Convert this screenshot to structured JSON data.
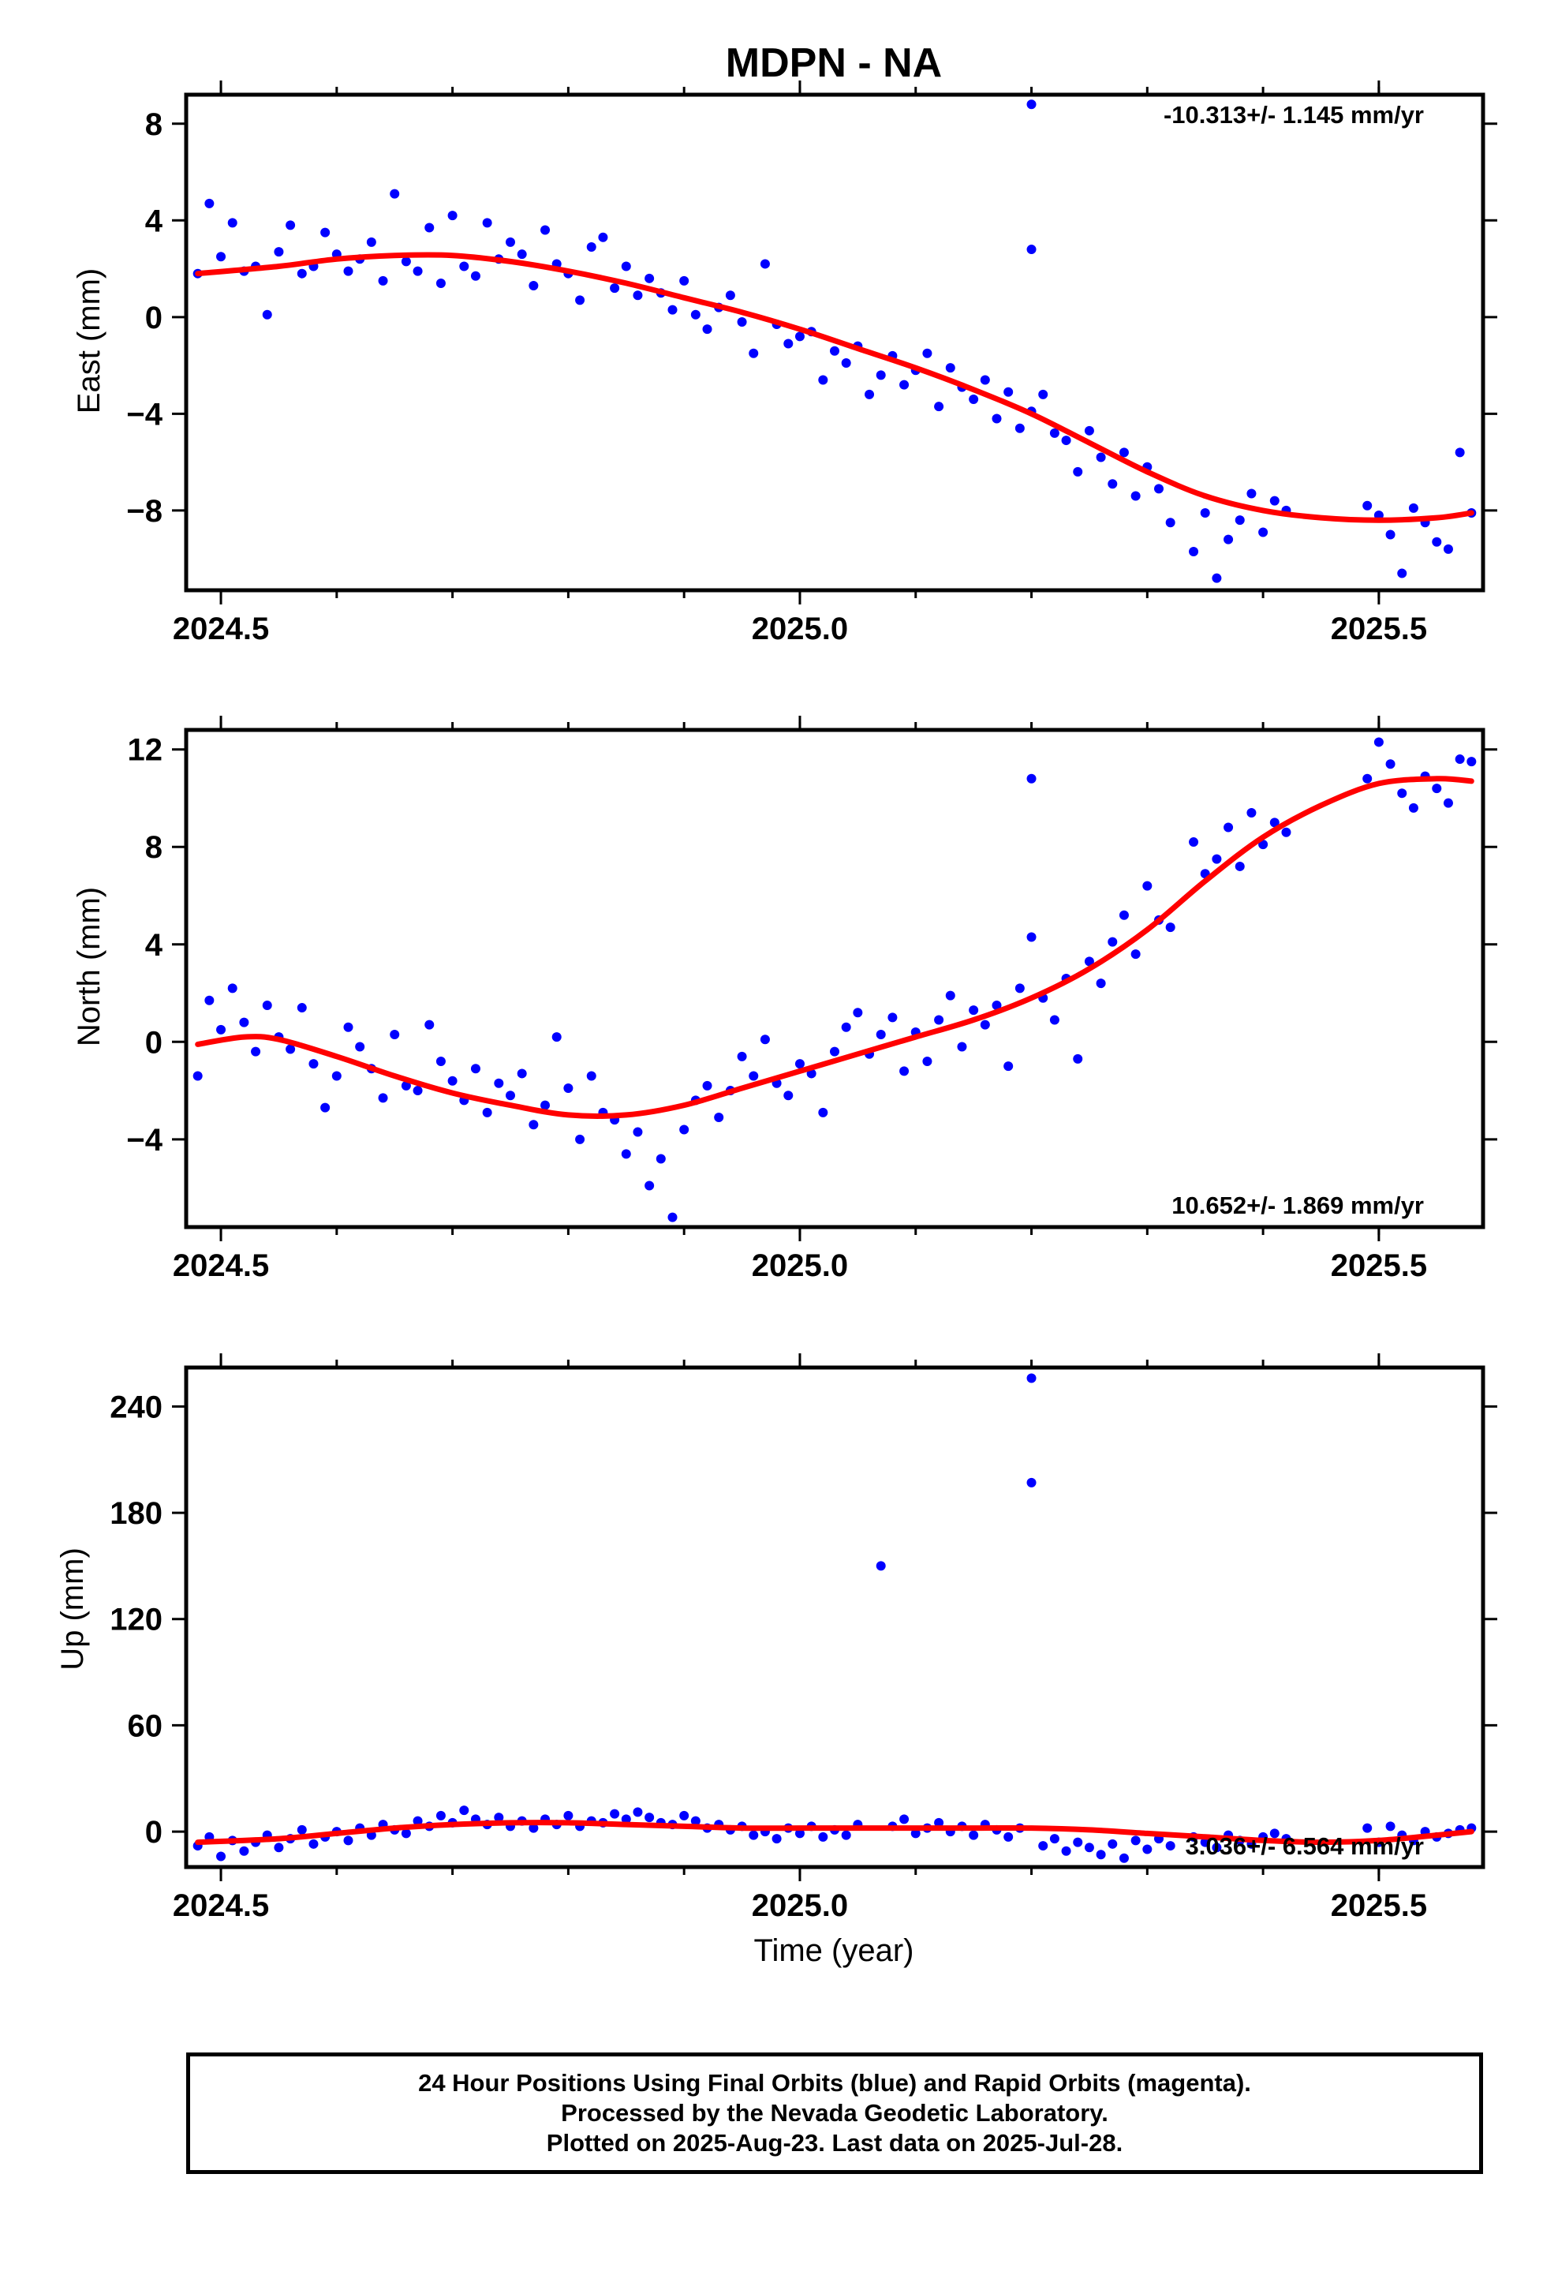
{
  "title": "MDPN - NA",
  "x_axis_title": "Time (year)",
  "footer": {
    "line1": "24 Hour Positions Using Final Orbits (blue) and Rapid Orbits (magenta).",
    "line2": "Processed by the Nevada Geodetic Laboratory.",
    "line3": "Plotted on 2025-Aug-23. Last data on 2025-Jul-28."
  },
  "colors": {
    "points": "#0000ff",
    "fit": "#ff0000",
    "axes": "#000000"
  },
  "chart_data": [
    {
      "type": "scatter",
      "panel": "east",
      "ylabel": "East (mm)",
      "rate_label": "-10.313+/- 1.145 mm/yr",
      "rate_position": "top-right",
      "xlim": [
        2024.47,
        2025.59
      ],
      "ylim": [
        -11.3,
        9.2
      ],
      "xticks": [
        2024.5,
        2025.0,
        2025.5
      ],
      "xtick_labels": [
        "2024.5",
        "2025.0",
        "2025.5"
      ],
      "yticks": [
        -8,
        -4,
        0,
        4,
        8
      ],
      "ytick_labels": [
        "−8",
        "−4",
        "0",
        "4",
        "8"
      ],
      "fit_series": {
        "x": [
          2024.48,
          2024.55,
          2024.6,
          2024.65,
          2024.7,
          2024.75,
          2024.8,
          2024.85,
          2024.9,
          2024.95,
          2025.0,
          2025.05,
          2025.1,
          2025.15,
          2025.2,
          2025.25,
          2025.3,
          2025.35,
          2025.4,
          2025.45,
          2025.5,
          2025.55,
          2025.58
        ],
        "y": [
          1.8,
          2.1,
          2.4,
          2.55,
          2.55,
          2.3,
          1.9,
          1.4,
          0.8,
          0.2,
          -0.5,
          -1.3,
          -2.1,
          -3.0,
          -4.0,
          -5.2,
          -6.4,
          -7.4,
          -8.0,
          -8.3,
          -8.4,
          -8.3,
          -8.1
        ]
      },
      "points": {
        "x": [
          2024.48,
          2024.49,
          2024.5,
          2024.51,
          2024.52,
          2024.53,
          2024.54,
          2024.55,
          2024.56,
          2024.57,
          2024.58,
          2024.59,
          2024.6,
          2024.61,
          2024.62,
          2024.63,
          2024.64,
          2024.65,
          2024.66,
          2024.67,
          2024.68,
          2024.69,
          2024.7,
          2024.71,
          2024.72,
          2024.73,
          2024.74,
          2024.75,
          2024.76,
          2024.77,
          2024.78,
          2024.79,
          2024.8,
          2024.81,
          2024.82,
          2024.83,
          2024.84,
          2024.85,
          2024.86,
          2024.87,
          2024.88,
          2024.89,
          2024.9,
          2024.91,
          2024.92,
          2024.93,
          2024.94,
          2024.95,
          2024.96,
          2024.97,
          2024.98,
          2024.99,
          2025.0,
          2025.01,
          2025.02,
          2025.03,
          2025.04,
          2025.05,
          2025.06,
          2025.07,
          2025.08,
          2025.09,
          2025.1,
          2025.11,
          2025.12,
          2025.13,
          2025.14,
          2025.15,
          2025.16,
          2025.17,
          2025.18,
          2025.19,
          2025.2,
          2025.2,
          2025.2,
          2025.21,
          2025.22,
          2025.23,
          2025.24,
          2025.25,
          2025.26,
          2025.27,
          2025.28,
          2025.29,
          2025.3,
          2025.31,
          2025.32,
          2025.34,
          2025.35,
          2025.36,
          2025.37,
          2025.38,
          2025.39,
          2025.4,
          2025.41,
          2025.42,
          2025.49,
          2025.5,
          2025.51,
          2025.52,
          2025.53,
          2025.54,
          2025.55,
          2025.56,
          2025.57,
          2025.58
        ],
        "y": [
          1.8,
          4.7,
          2.5,
          3.9,
          1.9,
          2.1,
          0.1,
          2.7,
          3.8,
          1.8,
          2.1,
          3.5,
          2.6,
          1.9,
          2.4,
          3.1,
          1.5,
          5.1,
          2.3,
          1.9,
          3.7,
          1.4,
          4.2,
          2.1,
          1.7,
          3.9,
          2.4,
          3.1,
          2.6,
          1.3,
          3.6,
          2.2,
          1.8,
          0.7,
          2.9,
          3.3,
          1.2,
          2.1,
          0.9,
          1.6,
          1.0,
          0.3,
          1.5,
          0.1,
          -0.5,
          0.4,
          0.9,
          -0.2,
          -1.5,
          2.2,
          -0.3,
          -1.1,
          -0.8,
          -0.6,
          -2.6,
          -1.4,
          -1.9,
          -1.2,
          -3.2,
          -2.4,
          -1.6,
          -2.8,
          -2.2,
          -1.5,
          -3.7,
          -2.1,
          -2.9,
          -3.4,
          -2.6,
          -4.2,
          -3.1,
          -4.6,
          8.8,
          2.8,
          -3.9,
          -3.2,
          -4.8,
          -5.1,
          -6.4,
          -4.7,
          -5.8,
          -6.9,
          -5.6,
          -7.4,
          -6.2,
          -7.1,
          -8.5,
          -9.7,
          -8.1,
          -10.8,
          -9.2,
          -8.4,
          -7.3,
          -8.9,
          -7.6,
          -8.0,
          -7.8,
          -8.2,
          -9.0,
          -10.6,
          -7.9,
          -8.5,
          -9.3,
          -9.6,
          -5.6,
          -8.1
        ]
      }
    },
    {
      "type": "scatter",
      "panel": "north",
      "ylabel": "North (mm)",
      "rate_label": "10.652+/- 1.869 mm/yr",
      "rate_position": "bottom-right",
      "xlim": [
        2024.47,
        2025.59
      ],
      "ylim": [
        -7.6,
        12.8
      ],
      "xticks": [
        2024.5,
        2025.0,
        2025.5
      ],
      "xtick_labels": [
        "2024.5",
        "2025.0",
        "2025.5"
      ],
      "yticks": [
        -4,
        0,
        4,
        8,
        12
      ],
      "ytick_labels": [
        "−4",
        "0",
        "4",
        "8",
        "12"
      ],
      "fit_series": {
        "x": [
          2024.48,
          2024.52,
          2024.55,
          2024.6,
          2024.65,
          2024.7,
          2024.75,
          2024.8,
          2024.85,
          2024.9,
          2024.95,
          2025.0,
          2025.05,
          2025.1,
          2025.15,
          2025.2,
          2025.25,
          2025.3,
          2025.35,
          2025.4,
          2025.45,
          2025.5,
          2025.55,
          2025.58
        ],
        "y": [
          -0.1,
          0.2,
          0.1,
          -0.6,
          -1.4,
          -2.1,
          -2.6,
          -3.0,
          -3.0,
          -2.6,
          -1.9,
          -1.2,
          -0.5,
          0.2,
          0.9,
          1.8,
          3.0,
          4.6,
          6.6,
          8.4,
          9.7,
          10.6,
          10.8,
          10.7
        ]
      },
      "points": {
        "x": [
          2024.48,
          2024.49,
          2024.5,
          2024.51,
          2024.52,
          2024.53,
          2024.54,
          2024.55,
          2024.56,
          2024.57,
          2024.58,
          2024.59,
          2024.6,
          2024.61,
          2024.62,
          2024.63,
          2024.64,
          2024.65,
          2024.66,
          2024.67,
          2024.68,
          2024.69,
          2024.7,
          2024.71,
          2024.72,
          2024.73,
          2024.74,
          2024.75,
          2024.76,
          2024.77,
          2024.78,
          2024.79,
          2024.8,
          2024.81,
          2024.82,
          2024.83,
          2024.84,
          2024.85,
          2024.86,
          2024.87,
          2024.88,
          2024.89,
          2024.9,
          2024.91,
          2024.92,
          2024.93,
          2024.94,
          2024.95,
          2024.96,
          2024.97,
          2024.98,
          2024.99,
          2025.0,
          2025.01,
          2025.02,
          2025.03,
          2025.04,
          2025.05,
          2025.06,
          2025.07,
          2025.08,
          2025.09,
          2025.1,
          2025.11,
          2025.12,
          2025.13,
          2025.14,
          2025.15,
          2025.16,
          2025.17,
          2025.18,
          2025.19,
          2025.2,
          2025.2,
          2025.21,
          2025.22,
          2025.23,
          2025.24,
          2025.25,
          2025.26,
          2025.27,
          2025.28,
          2025.29,
          2025.3,
          2025.31,
          2025.32,
          2025.34,
          2025.35,
          2025.36,
          2025.37,
          2025.38,
          2025.39,
          2025.4,
          2025.41,
          2025.42,
          2025.49,
          2025.5,
          2025.51,
          2025.52,
          2025.53,
          2025.54,
          2025.55,
          2025.56,
          2025.57,
          2025.58
        ],
        "y": [
          -1.4,
          1.7,
          0.5,
          2.2,
          0.8,
          -0.4,
          1.5,
          0.2,
          -0.3,
          1.4,
          -0.9,
          -2.7,
          -1.4,
          0.6,
          -0.2,
          -1.1,
          -2.3,
          0.3,
          -1.8,
          -2.0,
          0.7,
          -0.8,
          -1.6,
          -2.4,
          -1.1,
          -2.9,
          -1.7,
          -2.2,
          -1.3,
          -3.4,
          -2.6,
          0.2,
          -1.9,
          -4.0,
          -1.4,
          -2.9,
          -3.2,
          -4.6,
          -3.7,
          -5.9,
          -4.8,
          -7.2,
          -3.6,
          -2.4,
          -1.8,
          -3.1,
          -2.0,
          -0.6,
          -1.4,
          0.1,
          -1.7,
          -2.2,
          -0.9,
          -1.3,
          -2.9,
          -0.4,
          0.6,
          1.2,
          -0.5,
          0.3,
          1.0,
          -1.2,
          0.4,
          -0.8,
          0.9,
          1.9,
          -0.2,
          1.3,
          0.7,
          1.5,
          -1.0,
          2.2,
          4.3,
          10.8,
          1.8,
          0.9,
          2.6,
          -0.7,
          3.3,
          2.4,
          4.1,
          5.2,
          3.6,
          6.4,
          5.0,
          4.7,
          8.2,
          6.9,
          7.5,
          8.8,
          7.2,
          9.4,
          8.1,
          9.0,
          8.6,
          10.8,
          12.3,
          11.4,
          10.2,
          9.6,
          10.9,
          10.4,
          9.8,
          11.6,
          11.5
        ]
      }
    },
    {
      "type": "scatter",
      "panel": "up",
      "ylabel": "Up (mm)",
      "rate_label": "3.036+/- 6.564 mm/yr",
      "rate_position": "bottom-right",
      "xlim": [
        2024.47,
        2025.59
      ],
      "ylim": [
        -20,
        262
      ],
      "xticks": [
        2024.5,
        2025.0,
        2025.5
      ],
      "xtick_labels": [
        "2024.5",
        "2025.0",
        "2025.5"
      ],
      "yticks": [
        0,
        60,
        120,
        180,
        240
      ],
      "ytick_labels": [
        "0",
        "60",
        "120",
        "180",
        "240"
      ],
      "fit_series": {
        "x": [
          2024.48,
          2024.55,
          2024.6,
          2024.65,
          2024.7,
          2024.75,
          2024.8,
          2024.85,
          2024.9,
          2024.95,
          2025.0,
          2025.05,
          2025.1,
          2025.15,
          2025.2,
          2025.25,
          2025.3,
          2025.35,
          2025.4,
          2025.45,
          2025.5,
          2025.55,
          2025.58
        ],
        "y": [
          -6,
          -4,
          -1,
          2,
          4,
          5,
          5,
          4,
          3,
          2,
          2,
          2,
          2,
          2,
          2,
          1,
          -1,
          -3,
          -5,
          -6,
          -5,
          -2,
          0
        ]
      },
      "points": {
        "x": [
          2024.48,
          2024.49,
          2024.5,
          2024.51,
          2024.52,
          2024.53,
          2024.54,
          2024.55,
          2024.56,
          2024.57,
          2024.58,
          2024.59,
          2024.6,
          2024.61,
          2024.62,
          2024.63,
          2024.64,
          2024.65,
          2024.66,
          2024.67,
          2024.68,
          2024.69,
          2024.7,
          2024.71,
          2024.72,
          2024.73,
          2024.74,
          2024.75,
          2024.76,
          2024.77,
          2024.78,
          2024.79,
          2024.8,
          2024.81,
          2024.82,
          2024.83,
          2024.84,
          2024.85,
          2024.86,
          2024.87,
          2024.88,
          2024.89,
          2024.9,
          2024.91,
          2024.92,
          2024.93,
          2024.94,
          2024.95,
          2024.96,
          2024.97,
          2024.98,
          2024.99,
          2025.0,
          2025.01,
          2025.02,
          2025.03,
          2025.04,
          2025.05,
          2025.07,
          2025.08,
          2025.09,
          2025.1,
          2025.11,
          2025.12,
          2025.13,
          2025.14,
          2025.15,
          2025.16,
          2025.17,
          2025.18,
          2025.19,
          2025.2,
          2025.2,
          2025.21,
          2025.22,
          2025.23,
          2025.24,
          2025.25,
          2025.26,
          2025.27,
          2025.28,
          2025.29,
          2025.3,
          2025.31,
          2025.32,
          2025.34,
          2025.35,
          2025.36,
          2025.37,
          2025.38,
          2025.39,
          2025.4,
          2025.41,
          2025.42,
          2025.49,
          2025.5,
          2025.51,
          2025.52,
          2025.53,
          2025.54,
          2025.55,
          2025.56,
          2025.57,
          2025.58
        ],
        "y": [
          -8,
          -3,
          -14,
          -5,
          -11,
          -6,
          -2,
          -9,
          -4,
          1,
          -7,
          -3,
          0,
          -5,
          2,
          -2,
          4,
          1,
          -1,
          6,
          3,
          9,
          5,
          12,
          7,
          4,
          8,
          3,
          6,
          2,
          7,
          4,
          9,
          3,
          6,
          5,
          10,
          7,
          11,
          8,
          5,
          4,
          9,
          6,
          2,
          4,
          1,
          3,
          -2,
          0,
          -4,
          2,
          -1,
          3,
          -3,
          1,
          -2,
          4,
          150,
          3,
          7,
          -1,
          2,
          5,
          0,
          3,
          -2,
          4,
          1,
          -3,
          2,
          197,
          256,
          -8,
          -4,
          -11,
          -6,
          -9,
          -13,
          -7,
          -15,
          -5,
          -10,
          -4,
          -8,
          -3,
          -6,
          -9,
          -2,
          -5,
          -7,
          -3,
          -1,
          -4,
          2,
          -6,
          3,
          -2,
          -5,
          0,
          -3,
          -1,
          1,
          2
        ]
      },
      "x_axis_title": "Time (year)"
    }
  ]
}
